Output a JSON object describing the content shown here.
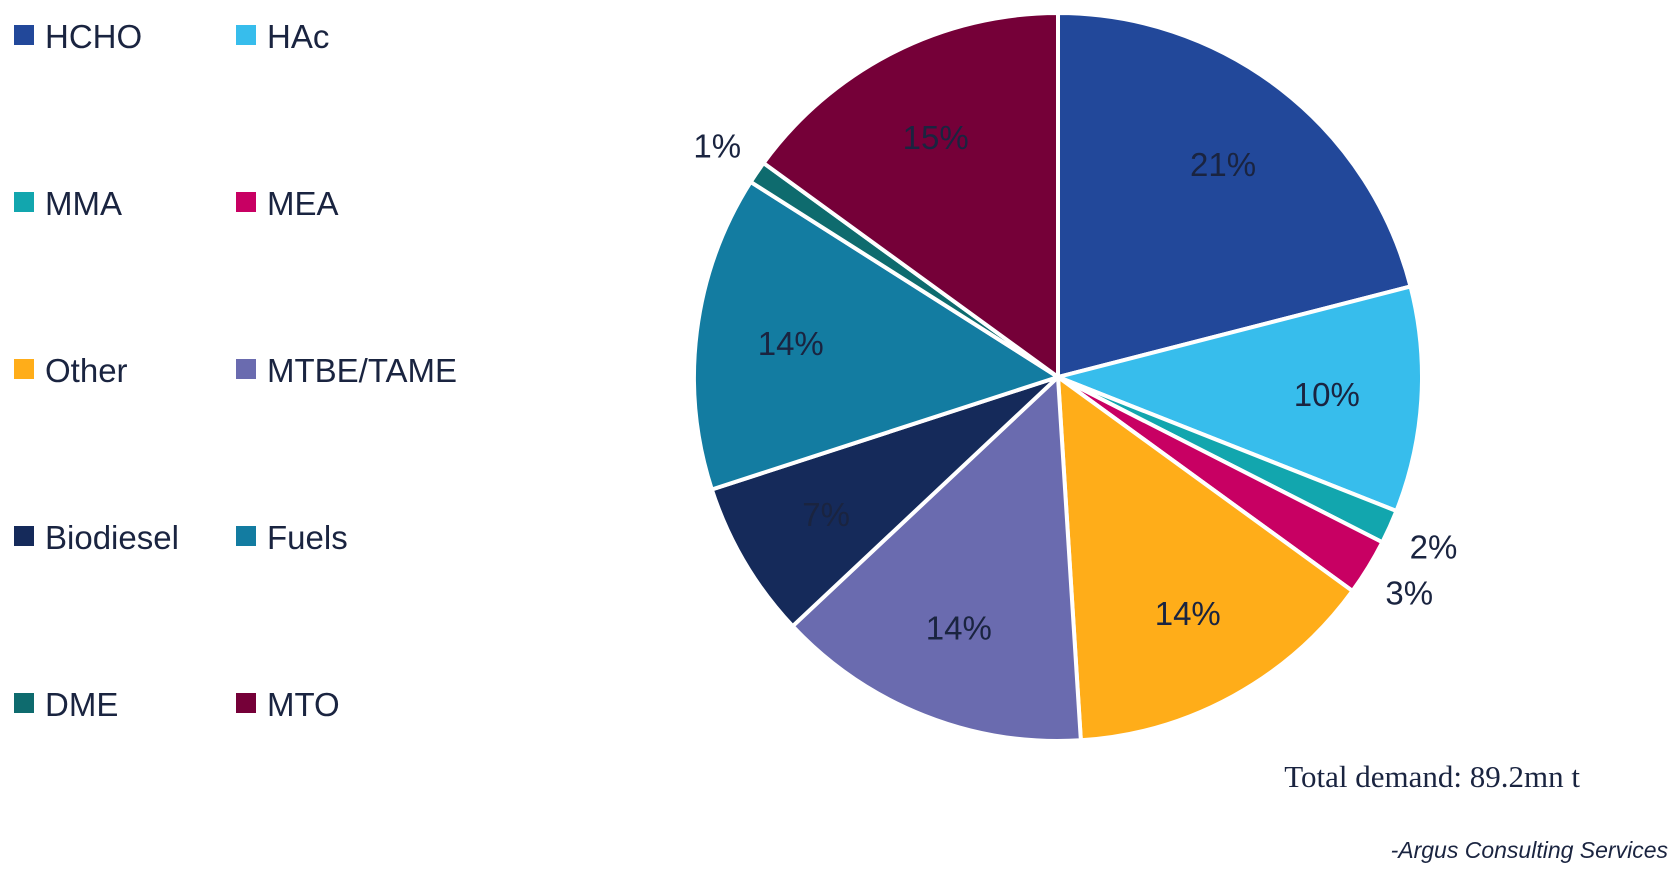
{
  "chart_data": {
    "type": "pie",
    "start_angle_deg": 0,
    "direction": "clockwise",
    "legend_position": "left",
    "series": [
      {
        "name": "HCHO",
        "value": 21,
        "label": "21%",
        "color": "#22489A",
        "label_color": "#1a2440"
      },
      {
        "name": "HAc",
        "value": 10,
        "label": "10%",
        "color": "#37BDEC",
        "label_color": "#1a2440"
      },
      {
        "name": "MMA",
        "value": 1.5,
        "label": "2%",
        "color": "#12A6AE",
        "label_color": "#1a2440"
      },
      {
        "name": "MEA",
        "value": 2.5,
        "label": "3%",
        "color": "#C80063",
        "label_color": "#1a2440"
      },
      {
        "name": "Other",
        "value": 14,
        "label": "14%",
        "color": "#FFAD19",
        "label_color": "#1a2440"
      },
      {
        "name": "MTBE/TAME",
        "value": 14,
        "label": "14%",
        "color": "#6A6BAF",
        "label_color": "#1a2440"
      },
      {
        "name": "Biodiesel",
        "value": 7,
        "label": "7%",
        "color": "#152A5A",
        "label_color": "#1a2440"
      },
      {
        "name": "Fuels",
        "value": 14,
        "label": "14%",
        "color": "#137CA1",
        "label_color": "#1a2440"
      },
      {
        "name": "DME",
        "value": 1,
        "label": "1%",
        "color": "#0E6B6E",
        "label_color": "#1a2440"
      },
      {
        "name": "MTO",
        "value": 15,
        "label": "15%",
        "color": "#750038",
        "label_color": "#1a2440"
      }
    ],
    "legend_order": [
      "HCHO",
      "HAc",
      "MMA",
      "MEA",
      "Other",
      "MTBE/TAME",
      "Biodiesel",
      "Fuels",
      "DME",
      "MTO"
    ]
  },
  "annotations": {
    "total_demand": "Total demand: 89.2mn t",
    "source": "-Argus Consulting Services"
  }
}
